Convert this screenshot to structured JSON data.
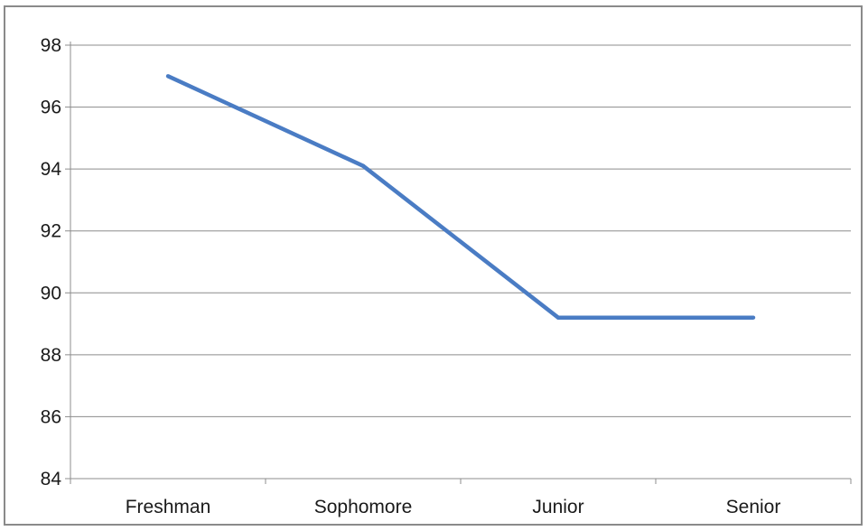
{
  "chart_data": {
    "type": "line",
    "title": "",
    "xlabel": "",
    "ylabel": "",
    "categories": [
      "Freshman",
      "Sophomore",
      "Junior",
      "Senior"
    ],
    "series": [
      {
        "values": [
          97.0,
          94.1,
          89.2,
          89.2
        ],
        "color": "#4a7cc4"
      }
    ],
    "ylim": [
      84,
      98
    ],
    "yticks": [
      84,
      86,
      88,
      90,
      92,
      94,
      96,
      98
    ],
    "ytick_labels": [
      "84",
      "86",
      "88",
      "90",
      "92",
      "94",
      "96",
      "98"
    ],
    "grid": true,
    "legend": "none"
  }
}
